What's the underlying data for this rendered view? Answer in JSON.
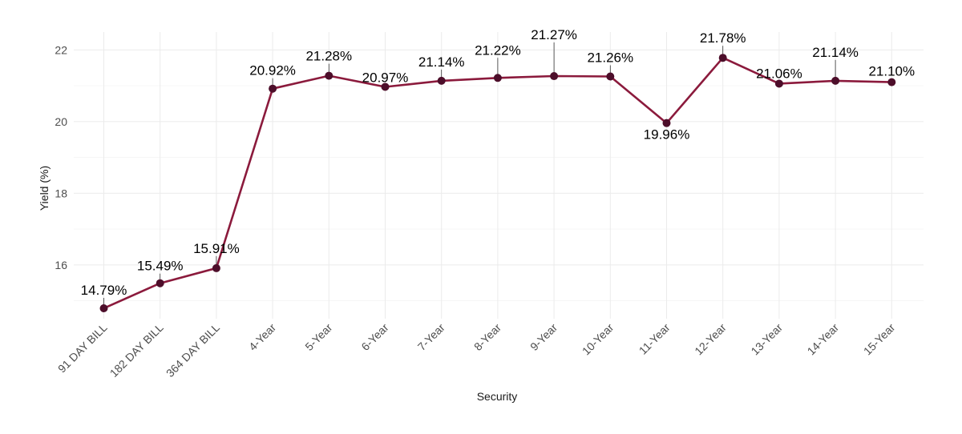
{
  "chart_data": {
    "type": "line",
    "title": "",
    "xlabel": "Security",
    "ylabel": "Yield (%)",
    "ylim": [
      14.5,
      22.5
    ],
    "yticks": [
      16,
      18,
      20,
      22
    ],
    "grid": true,
    "legend": "none",
    "colors": {
      "line": "#8b1a3c",
      "point": "#4d0e2a"
    },
    "categories": [
      "91 DAY BILL",
      "182 DAY BILL",
      "364 DAY BILL",
      "4-Year",
      "5-Year",
      "6-Year",
      "7-Year",
      "8-Year",
      "9-Year",
      "10-Year",
      "11-Year",
      "12-Year",
      "13-Year",
      "14-Year",
      "15-Year"
    ],
    "values": [
      14.79,
      15.49,
      15.91,
      20.92,
      21.28,
      20.97,
      21.14,
      21.22,
      21.27,
      21.26,
      19.96,
      21.78,
      21.06,
      21.14,
      21.1
    ],
    "labels": [
      "14.79%",
      "15.49%",
      "15.91%",
      "20.92%",
      "21.28%",
      "20.97%",
      "21.14%",
      "21.22%",
      "21.27%",
      "21.26%",
      "19.96%",
      "21.78%",
      "21.06%",
      "21.14%",
      "21.10%"
    ]
  }
}
